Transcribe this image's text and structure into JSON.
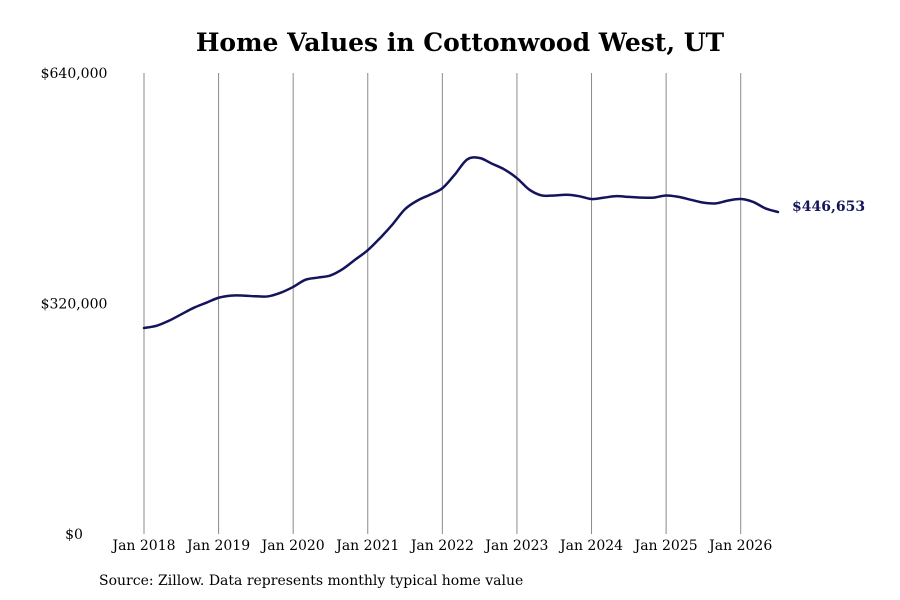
{
  "chart_data": {
    "type": "line",
    "title": "Home Values in Cottonwood West, UT",
    "xlabel": "",
    "ylabel": "",
    "x_tick_labels": [
      "Jan 2018",
      "Jan 2019",
      "Jan 2020",
      "Jan 2021",
      "Jan 2022",
      "Jan 2023",
      "Jan 2024",
      "Jan 2025",
      "Jan 2026"
    ],
    "y_tick_labels": [
      "$0",
      "$320,000",
      "$640,000"
    ],
    "y_ticks": [
      0,
      320000,
      640000
    ],
    "ylim": [
      0,
      640000
    ],
    "xlim": [
      "2018-01",
      "2026-07"
    ],
    "grid": "vertical",
    "line_color": "#14145c",
    "series": [
      {
        "end_label": "$446,653",
        "points": [
          [
            "2018-01",
            286000
          ],
          [
            "2018-03",
            289000
          ],
          [
            "2018-05",
            296000
          ],
          [
            "2018-07",
            305000
          ],
          [
            "2018-09",
            314000
          ],
          [
            "2018-11",
            321000
          ],
          [
            "2019-01",
            328000
          ],
          [
            "2019-03",
            331000
          ],
          [
            "2019-05",
            331000
          ],
          [
            "2019-07",
            330000
          ],
          [
            "2019-09",
            330000
          ],
          [
            "2019-11",
            335000
          ],
          [
            "2020-01",
            343000
          ],
          [
            "2020-03",
            353000
          ],
          [
            "2020-05",
            356000
          ],
          [
            "2020-07",
            359000
          ],
          [
            "2020-09",
            368000
          ],
          [
            "2020-11",
            381000
          ],
          [
            "2021-01",
            394000
          ],
          [
            "2021-03",
            411000
          ],
          [
            "2021-05",
            430000
          ],
          [
            "2021-07",
            451000
          ],
          [
            "2021-09",
            463000
          ],
          [
            "2021-11",
            471000
          ],
          [
            "2022-01",
            480000
          ],
          [
            "2022-03",
            499000
          ],
          [
            "2022-05",
            520000
          ],
          [
            "2022-07",
            522000
          ],
          [
            "2022-09",
            514000
          ],
          [
            "2022-11",
            506000
          ],
          [
            "2023-01",
            494000
          ],
          [
            "2023-03",
            478000
          ],
          [
            "2023-05",
            470000
          ],
          [
            "2023-07",
            470000
          ],
          [
            "2023-09",
            471000
          ],
          [
            "2023-11",
            469000
          ],
          [
            "2024-01",
            465000
          ],
          [
            "2024-03",
            467000
          ],
          [
            "2024-05",
            469000
          ],
          [
            "2024-07",
            468000
          ],
          [
            "2024-09",
            467000
          ],
          [
            "2024-11",
            467000
          ],
          [
            "2025-01",
            470000
          ],
          [
            "2025-03",
            468000
          ],
          [
            "2025-05",
            464000
          ],
          [
            "2025-07",
            460000
          ],
          [
            "2025-09",
            459000
          ],
          [
            "2025-11",
            463000
          ],
          [
            "2026-01",
            465000
          ],
          [
            "2026-03",
            461000
          ],
          [
            "2026-05",
            452000
          ],
          [
            "2026-07",
            447000
          ]
        ]
      }
    ],
    "source": "Source: Zillow. Data represents monthly typical home value"
  }
}
